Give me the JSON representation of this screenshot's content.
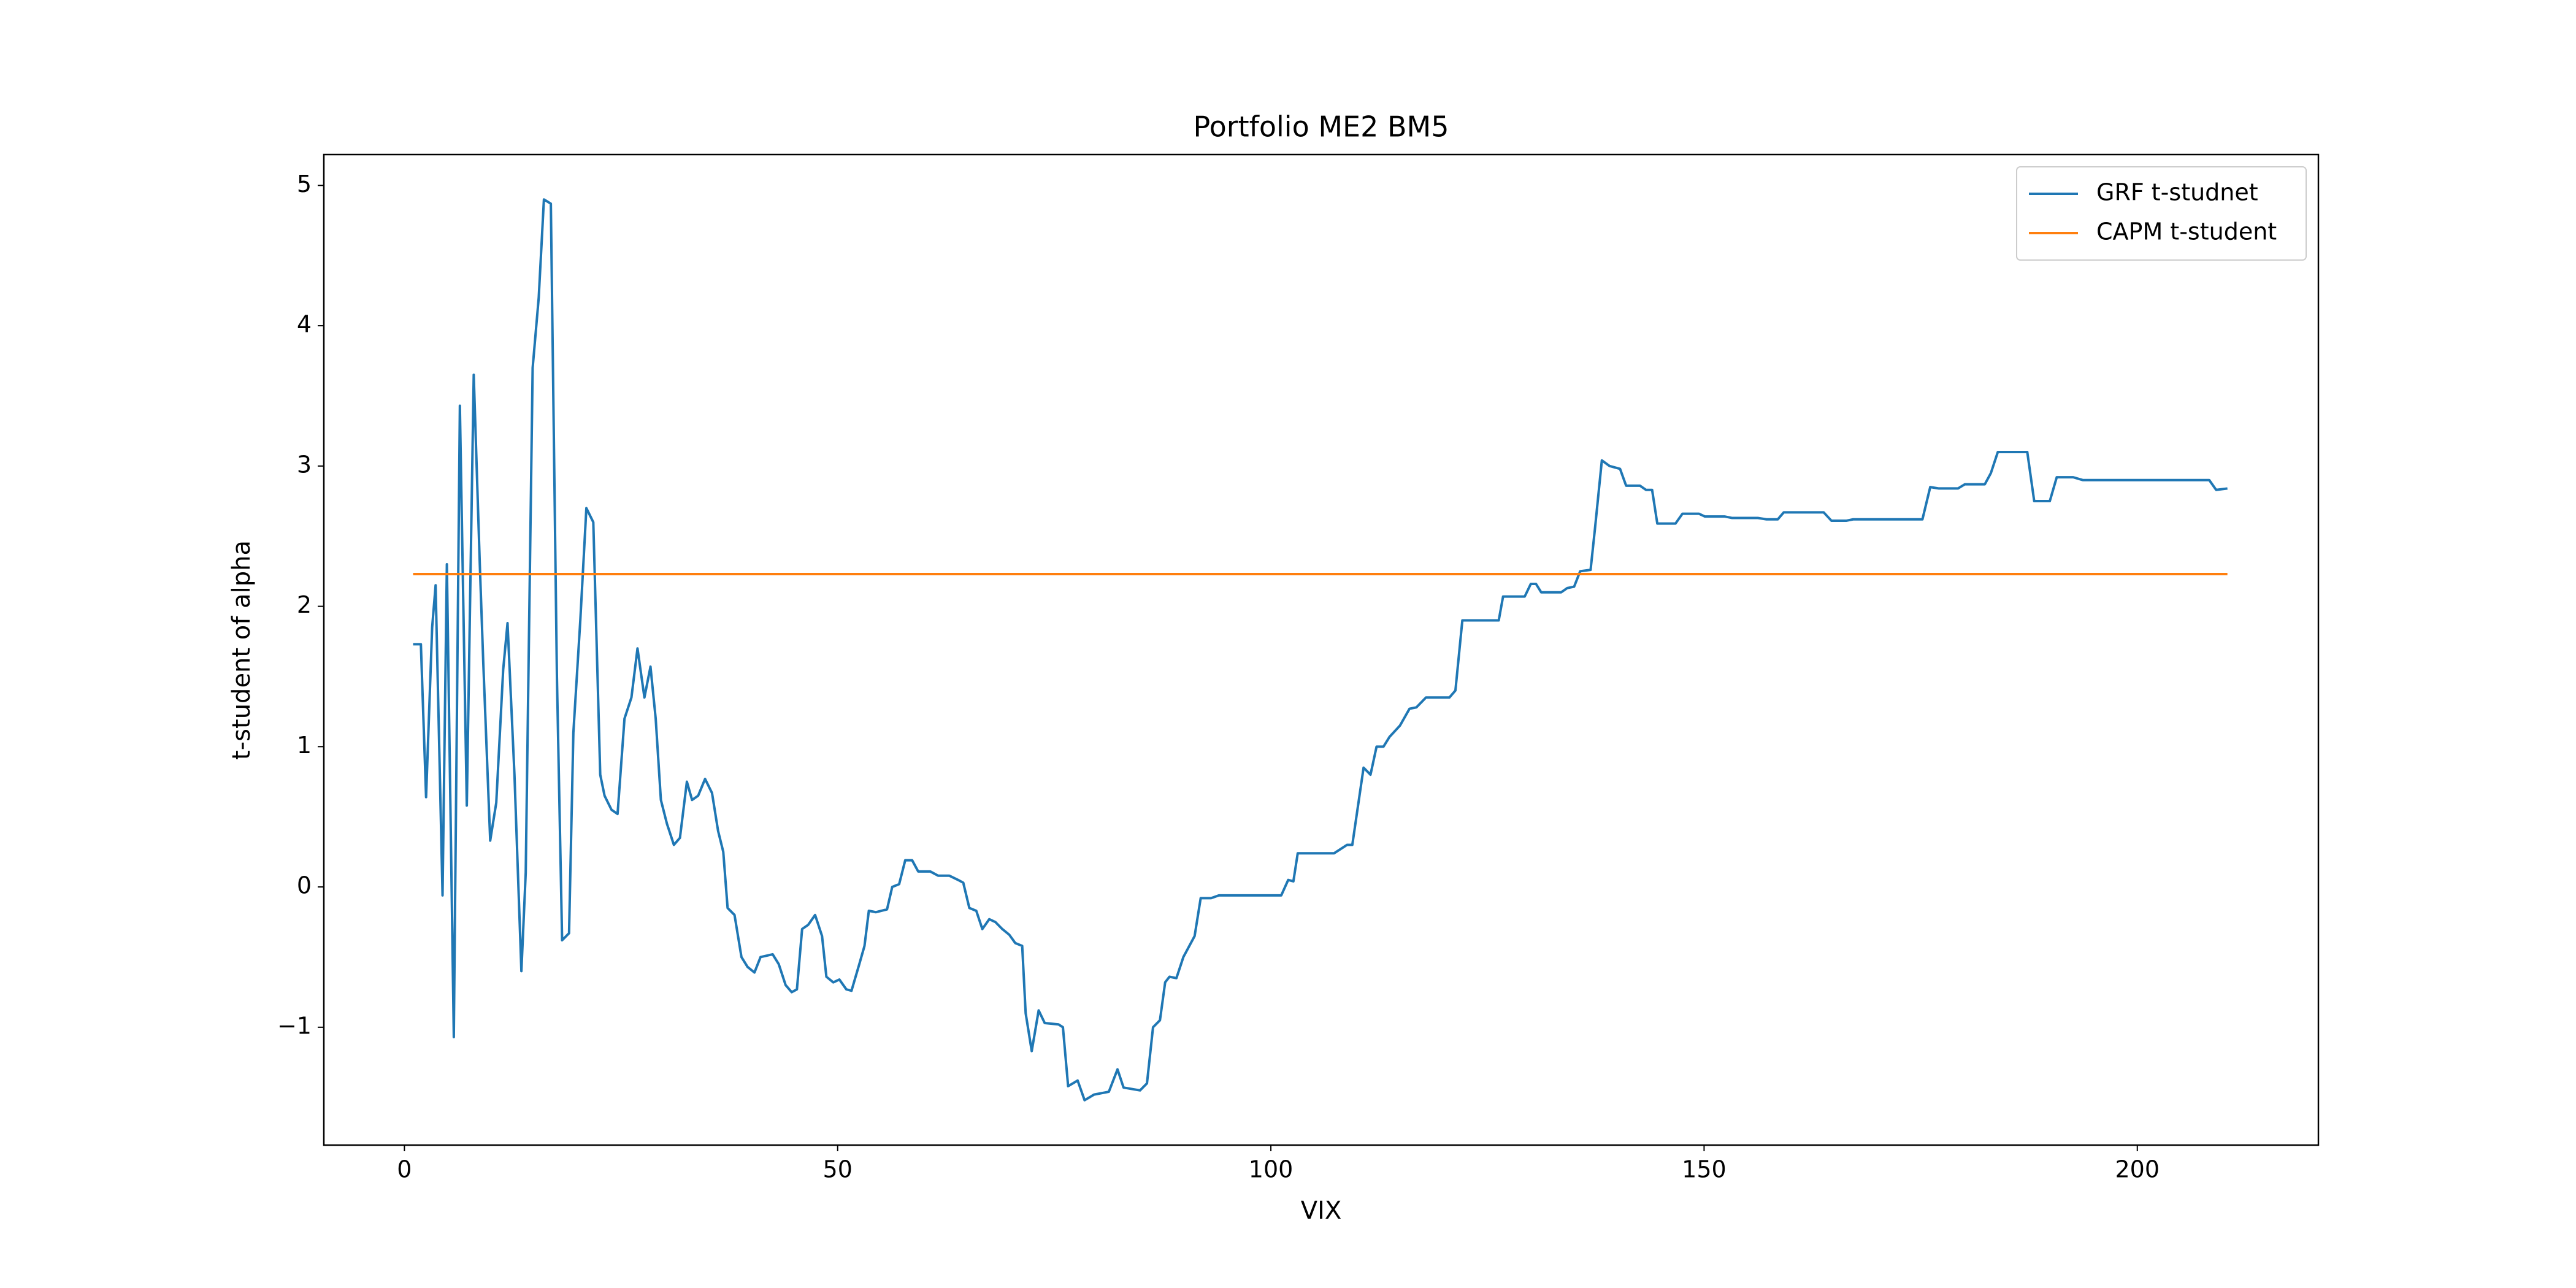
{
  "chart_data": {
    "type": "line",
    "title": "Portfolio ME2 BM5",
    "x_label": "VIX",
    "y_label": "t-student of alpha",
    "xlim": [
      -9.3,
      220.9
    ],
    "ylim": [
      -1.84,
      5.22
    ],
    "xticks": [
      0,
      50,
      100,
      150,
      200
    ],
    "yticks": [
      {
        "value": -1,
        "label": "−1"
      },
      0,
      1,
      2,
      3,
      4,
      5
    ],
    "grid": false,
    "legend_loc": "upper right",
    "series": [
      {
        "name": "GRF t-studnet",
        "color": "#1f77b4",
        "x": [
          1,
          1.3,
          1.9,
          2.5,
          3.2,
          3.6,
          4.4,
          4.9,
          5.7,
          6.4,
          7.2,
          8,
          8.7,
          9.1,
          9.9,
          10.6,
          11.4,
          11.9,
          12.7,
          13.5,
          14,
          14.8,
          15.5,
          16.1,
          16.9,
          17.6,
          18.2,
          19,
          19.5,
          20.3,
          21,
          21.8,
          22.6,
          23.1,
          23.9,
          24.6,
          25.4,
          26.2,
          26.9,
          27.7,
          28.4,
          29,
          29.6,
          30.3,
          31.1,
          31.8,
          32.6,
          33.2,
          33.9,
          34.7,
          35.5,
          36.2,
          36.8,
          37.3,
          38.1,
          38.9,
          39.6,
          40.4,
          41.1,
          42.5,
          43.2,
          44,
          44.7,
          45.3,
          45.9,
          46.6,
          47.4,
          48.2,
          48.7,
          49.5,
          50.2,
          51,
          51.6,
          52.5,
          53.1,
          53.6,
          54.4,
          55.7,
          56.3,
          57.1,
          57.8,
          58.6,
          59.3,
          60.7,
          61.6,
          62.9,
          63.9,
          64.5,
          65.2,
          66,
          66.7,
          67.5,
          68.2,
          69,
          69.8,
          70.5,
          71.3,
          71.7,
          72.4,
          73.2,
          73.9,
          75.5,
          76,
          76.6,
          77.7,
          78.5,
          79.6,
          81.3,
          82.3,
          83,
          84.9,
          85.7,
          86.4,
          87.2,
          87.8,
          88.3,
          89.1,
          89.9,
          91.2,
          91.9,
          93.1,
          94,
          101.2,
          102,
          102.6,
          103.1,
          107.3,
          108.8,
          109.4,
          110.7,
          111.5,
          112.2,
          113,
          113.7,
          114.9,
          116,
          116.8,
          117.9,
          120.6,
          121.3,
          122.1,
          125.1,
          126.3,
          126.8,
          129.3,
          130,
          130.6,
          131.2,
          133.5,
          134.2,
          135,
          135.7,
          136.9,
          137.4,
          138.2,
          139.1,
          140.3,
          141,
          142.6,
          143.3,
          144,
          144.6,
          146.7,
          147.5,
          149.4,
          150.1,
          152.4,
          153.2,
          156.2,
          157.2,
          158.5,
          159.2,
          163.8,
          164.7,
          166.4,
          167.2,
          175.2,
          176.1,
          177.1,
          179.3,
          180.1,
          182.4,
          183.1,
          183.9,
          187.3,
          188.1,
          189.9,
          190.7,
          192.6,
          193.7,
          208.3,
          209.1,
          210.4
        ],
        "values": [
          1.73,
          1.73,
          1.73,
          0.64,
          1.85,
          2.15,
          -0.06,
          2.3,
          -1.07,
          3.43,
          0.58,
          3.65,
          2.3,
          1.6,
          0.33,
          0.6,
          1.55,
          1.88,
          0.8,
          -0.6,
          0.1,
          3.7,
          4.2,
          4.9,
          4.87,
          1.5,
          -0.38,
          -0.33,
          1.1,
          1.9,
          2.7,
          2.6,
          0.8,
          0.65,
          0.55,
          0.52,
          1.2,
          1.35,
          1.7,
          1.35,
          1.57,
          1.2,
          0.62,
          0.45,
          0.3,
          0.35,
          0.75,
          0.62,
          0.65,
          0.77,
          0.67,
          0.4,
          0.25,
          -0.15,
          -0.2,
          -0.5,
          -0.57,
          -0.61,
          -0.5,
          -0.48,
          -0.55,
          -0.7,
          -0.75,
          -0.73,
          -0.3,
          -0.27,
          -0.2,
          -0.35,
          -0.64,
          -0.68,
          -0.66,
          -0.73,
          -0.74,
          -0.55,
          -0.42,
          -0.17,
          -0.18,
          -0.16,
          0,
          0.02,
          0.19,
          0.19,
          0.11,
          0.11,
          0.08,
          0.08,
          0.05,
          0.03,
          -0.15,
          -0.17,
          -0.3,
          -0.23,
          -0.25,
          -0.3,
          -0.34,
          -0.4,
          -0.42,
          -0.9,
          -1.17,
          -0.88,
          -0.97,
          -0.98,
          -1.0,
          -1.42,
          -1.38,
          -1.52,
          -1.48,
          -1.46,
          -1.3,
          -1.43,
          -1.45,
          -1.4,
          -1.0,
          -0.95,
          -0.68,
          -0.64,
          -0.65,
          -0.5,
          -0.35,
          -0.08,
          -0.08,
          -0.06,
          -0.06,
          0.05,
          0.04,
          0.24,
          0.24,
          0.3,
          0.3,
          0.85,
          0.8,
          1.0,
          1.0,
          1.07,
          1.15,
          1.27,
          1.28,
          1.35,
          1.35,
          1.4,
          1.9,
          1.9,
          1.9,
          2.07,
          2.07,
          2.16,
          2.16,
          2.1,
          2.1,
          2.13,
          2.14,
          2.25,
          2.26,
          2.55,
          3.04,
          3.0,
          2.98,
          2.86,
          2.86,
          2.83,
          2.83,
          2.59,
          2.59,
          2.66,
          2.66,
          2.64,
          2.64,
          2.63,
          2.63,
          2.62,
          2.62,
          2.67,
          2.67,
          2.61,
          2.61,
          2.62,
          2.62,
          2.85,
          2.84,
          2.84,
          2.87,
          2.87,
          2.95,
          3.1,
          3.1,
          2.75,
          2.75,
          2.92,
          2.92,
          2.9,
          2.9,
          2.83,
          2.84
        ]
      },
      {
        "name": "CAPM t-student",
        "color": "#ff7f0e",
        "x": [
          1,
          210.4
        ],
        "values": [
          2.23,
          2.23
        ]
      }
    ]
  }
}
